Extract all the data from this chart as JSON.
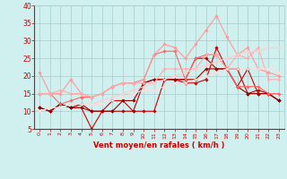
{
  "x": [
    0,
    1,
    2,
    3,
    4,
    5,
    6,
    7,
    8,
    9,
    10,
    11,
    12,
    13,
    14,
    15,
    16,
    17,
    18,
    19,
    20,
    21,
    22,
    23
  ],
  "series": [
    {
      "color": "#cc0000",
      "linewidth": 0.8,
      "marker": "D",
      "markersize": 1.8,
      "values": [
        11,
        10,
        12,
        11,
        11,
        5,
        10,
        13,
        13,
        10,
        10,
        10,
        19,
        19,
        18,
        18,
        19,
        28,
        22,
        17,
        22,
        15,
        15,
        13
      ]
    },
    {
      "color": "#bb0000",
      "linewidth": 0.8,
      "marker": "D",
      "markersize": 1.8,
      "values": [
        11,
        10,
        12,
        11,
        11,
        10,
        10,
        10,
        10,
        10,
        18,
        19,
        19,
        19,
        19,
        25,
        25,
        22,
        22,
        22,
        15,
        16,
        15,
        13
      ]
    },
    {
      "color": "#990000",
      "linewidth": 0.8,
      "marker": "D",
      "markersize": 1.8,
      "values": [
        11,
        10,
        12,
        11,
        12,
        10,
        10,
        10,
        13,
        13,
        18,
        19,
        19,
        19,
        19,
        19,
        22,
        22,
        22,
        17,
        15,
        15,
        15,
        13
      ]
    },
    {
      "color": "#ff6666",
      "linewidth": 0.8,
      "marker": "D",
      "markersize": 1.8,
      "values": [
        15,
        15,
        12,
        13,
        14,
        14,
        15,
        17,
        18,
        18,
        19,
        26,
        27,
        27,
        19,
        25,
        26,
        26,
        22,
        17,
        17,
        17,
        15,
        15
      ]
    },
    {
      "color": "#ff9999",
      "linewidth": 0.8,
      "marker": "D",
      "markersize": 1.8,
      "values": [
        21,
        15,
        15,
        19,
        15,
        14,
        15,
        17,
        18,
        18,
        19,
        26,
        29,
        28,
        25,
        29,
        33,
        37,
        31,
        26,
        28,
        22,
        21,
        20
      ]
    },
    {
      "color": "#ffaaaa",
      "linewidth": 0.8,
      "marker": "D",
      "markersize": 1.5,
      "values": [
        15,
        15,
        16,
        15,
        15,
        14,
        15,
        17,
        18,
        18,
        18,
        18,
        22,
        22,
        22,
        22,
        26,
        26,
        22,
        26,
        25,
        28,
        19,
        19
      ]
    },
    {
      "color": "#ffcccc",
      "linewidth": 0.8,
      "marker": "D",
      "markersize": 1.5,
      "values": [
        10,
        11,
        11,
        12,
        12,
        12,
        13,
        14,
        15,
        16,
        17,
        18,
        19,
        20,
        21,
        22,
        23,
        24,
        25,
        26,
        27,
        27,
        28,
        28
      ]
    },
    {
      "color": "#ffdddd",
      "linewidth": 0.8,
      "marker": "D",
      "markersize": 1.5,
      "values": [
        10,
        11,
        11,
        12,
        12,
        12,
        12,
        13,
        14,
        15,
        16,
        16,
        17,
        18,
        18,
        19,
        20,
        21,
        22,
        22,
        22,
        22,
        22,
        21
      ]
    }
  ],
  "xlim": [
    -0.5,
    23.5
  ],
  "ylim": [
    5,
    40
  ],
  "yticks": [
    5,
    10,
    15,
    20,
    25,
    30,
    35,
    40
  ],
  "xticks": [
    0,
    1,
    2,
    3,
    4,
    5,
    6,
    7,
    8,
    9,
    10,
    11,
    12,
    13,
    14,
    15,
    16,
    17,
    18,
    19,
    20,
    21,
    22,
    23
  ],
  "xlabel": "Vent moyen/en rafales ( km/h )",
  "bg_color": "#cff0ee",
  "grid_color": "#aacccc",
  "tick_color": "#cc0000",
  "label_color": "#cc0000"
}
